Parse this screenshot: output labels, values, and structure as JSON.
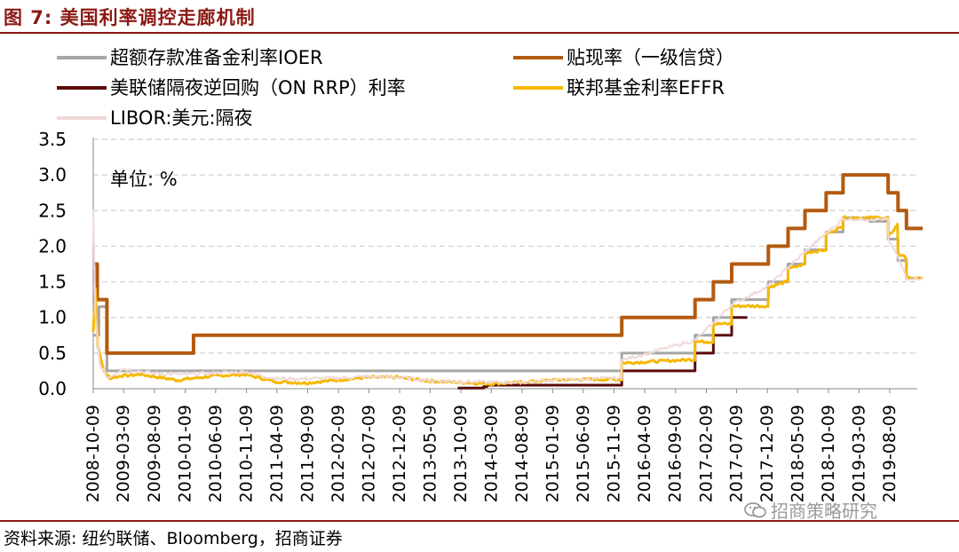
{
  "header": {
    "title": "图 7:  美国利率调控走廊机制"
  },
  "footer": {
    "source": "资料来源:  纽约联储、Bloomberg，招商证券"
  },
  "watermark": {
    "text": "招商策略研究",
    "icon": "wechat-icon"
  },
  "chart_data": {
    "type": "line",
    "unit_label": "单位:  %",
    "ylim": [
      0,
      3.5
    ],
    "yticks": [
      "0.0",
      "0.5",
      "1.0",
      "1.5",
      "2.0",
      "2.5",
      "3.0",
      "3.5"
    ],
    "grid": true,
    "legend_placement": "top",
    "x_tick_labels": [
      "2008-10-09",
      "2009-03-09",
      "2009-08-09",
      "2010-01-09",
      "2010-06-09",
      "2010-11-09",
      "2011-04-09",
      "2011-09-09",
      "2012-02-09",
      "2012-07-09",
      "2012-12-09",
      "2013-05-09",
      "2013-10-09",
      "2014-03-09",
      "2014-08-09",
      "2015-01-09",
      "2015-06-09",
      "2015-11-09",
      "2016-04-09",
      "2016-09-09",
      "2017-02-09",
      "2017-07-09",
      "2017-12-09",
      "2018-05-09",
      "2018-10-09",
      "2019-03-09",
      "2019-08-09"
    ],
    "series": [
      {
        "name": "超额存款准备金利率IOER",
        "color": "#a6a6a6",
        "width": 3,
        "shape": "step",
        "points": [
          [
            "2008-10-09",
            0.75
          ],
          [
            "2008-11-06",
            1.15
          ],
          [
            "2008-12-16",
            0.25
          ],
          [
            "2015-12-17",
            0.5
          ],
          [
            "2016-12-15",
            0.75
          ],
          [
            "2017-03-16",
            1.0
          ],
          [
            "2017-06-15",
            1.25
          ],
          [
            "2017-12-14",
            1.5
          ],
          [
            "2018-03-22",
            1.75
          ],
          [
            "2018-06-14",
            1.95
          ],
          [
            "2018-09-27",
            2.2
          ],
          [
            "2018-12-20",
            2.4
          ],
          [
            "2019-05-02",
            2.35
          ],
          [
            "2019-08-01",
            2.1
          ],
          [
            "2019-09-19",
            1.8
          ],
          [
            "2019-10-31",
            1.55
          ],
          [
            "2020-01-20",
            1.55
          ]
        ]
      },
      {
        "name": "贴现率（一级信贷）",
        "color": "#b35a0f",
        "width": 4,
        "shape": "step",
        "points": [
          [
            "2008-10-09",
            1.75
          ],
          [
            "2008-10-29",
            1.25
          ],
          [
            "2008-12-16",
            0.5
          ],
          [
            "2010-02-19",
            0.75
          ],
          [
            "2015-12-17",
            1.0
          ],
          [
            "2016-12-15",
            1.25
          ],
          [
            "2017-03-16",
            1.5
          ],
          [
            "2017-06-15",
            1.75
          ],
          [
            "2017-12-14",
            2.0
          ],
          [
            "2018-03-22",
            2.25
          ],
          [
            "2018-06-14",
            2.5
          ],
          [
            "2018-09-27",
            2.75
          ],
          [
            "2018-12-20",
            3.0
          ],
          [
            "2019-08-01",
            2.75
          ],
          [
            "2019-09-19",
            2.5
          ],
          [
            "2019-10-31",
            2.25
          ],
          [
            "2020-01-20",
            2.25
          ]
        ]
      },
      {
        "name": "美联储隔夜逆回购（ON RRP）利率",
        "color": "#5a0a0a",
        "width": 3,
        "shape": "step",
        "points": [
          [
            "2013-09-23",
            0.01
          ],
          [
            "2014-01-30",
            0.03
          ],
          [
            "2014-02-15",
            0.05
          ],
          [
            "2015-12-17",
            0.25
          ],
          [
            "2016-12-15",
            0.5
          ],
          [
            "2017-03-16",
            0.75
          ],
          [
            "2017-06-15",
            1.0
          ],
          [
            "2017-09-01",
            1.0
          ]
        ]
      },
      {
        "name": "联邦基金利率EFFR",
        "color": "#f5b800",
        "width": 3,
        "shape": "noisy",
        "points": [
          [
            "2008-10-09",
            0.8
          ],
          [
            "2008-10-20",
            1.4
          ],
          [
            "2008-11-01",
            0.6
          ],
          [
            "2008-12-01",
            0.25
          ],
          [
            "2009-01-01",
            0.15
          ],
          [
            "2009-03-01",
            0.18
          ],
          [
            "2009-06-01",
            0.2
          ],
          [
            "2009-12-01",
            0.12
          ],
          [
            "2010-06-01",
            0.18
          ],
          [
            "2010-11-01",
            0.2
          ],
          [
            "2011-04-01",
            0.1
          ],
          [
            "2011-09-01",
            0.08
          ],
          [
            "2012-02-01",
            0.12
          ],
          [
            "2012-07-01",
            0.16
          ],
          [
            "2012-12-01",
            0.16
          ],
          [
            "2013-05-01",
            0.11
          ],
          [
            "2013-10-01",
            0.09
          ],
          [
            "2014-03-01",
            0.07
          ],
          [
            "2014-08-01",
            0.09
          ],
          [
            "2015-01-01",
            0.12
          ],
          [
            "2015-06-01",
            0.13
          ],
          [
            "2015-12-16",
            0.13
          ],
          [
            "2015-12-17",
            0.36
          ],
          [
            "2016-12-14",
            0.41
          ],
          [
            "2016-12-15",
            0.66
          ],
          [
            "2017-03-15",
            0.66
          ],
          [
            "2017-03-16",
            0.91
          ],
          [
            "2017-06-14",
            0.91
          ],
          [
            "2017-06-15",
            1.16
          ],
          [
            "2017-12-13",
            1.16
          ],
          [
            "2017-12-14",
            1.42
          ],
          [
            "2018-03-21",
            1.51
          ],
          [
            "2018-03-22",
            1.68
          ],
          [
            "2018-06-13",
            1.75
          ],
          [
            "2018-06-14",
            1.91
          ],
          [
            "2018-09-26",
            1.95
          ],
          [
            "2018-09-27",
            2.18
          ],
          [
            "2018-12-19",
            2.27
          ],
          [
            "2018-12-20",
            2.4
          ],
          [
            "2019-07-31",
            2.4
          ],
          [
            "2019-08-01",
            2.13
          ],
          [
            "2019-09-17",
            2.3
          ],
          [
            "2019-09-19",
            1.9
          ],
          [
            "2019-10-30",
            1.83
          ],
          [
            "2019-10-31",
            1.55
          ],
          [
            "2020-01-20",
            1.55
          ]
        ]
      },
      {
        "name": "LIBOR:美元:隔夜",
        "color": "#f0d8d8",
        "width": 2,
        "shape": "noisy",
        "points": [
          [
            "2008-10-09",
            2.5
          ],
          [
            "2008-10-20",
            1.0
          ],
          [
            "2008-11-10",
            0.35
          ],
          [
            "2008-12-20",
            0.15
          ],
          [
            "2009-03-01",
            0.28
          ],
          [
            "2009-08-01",
            0.22
          ],
          [
            "2010-01-01",
            0.2
          ],
          [
            "2010-06-01",
            0.22
          ],
          [
            "2010-11-01",
            0.24
          ],
          [
            "2011-04-01",
            0.14
          ],
          [
            "2011-09-01",
            0.14
          ],
          [
            "2012-02-01",
            0.15
          ],
          [
            "2012-07-01",
            0.17
          ],
          [
            "2012-12-01",
            0.16
          ],
          [
            "2013-05-01",
            0.12
          ],
          [
            "2013-10-01",
            0.1
          ],
          [
            "2014-03-01",
            0.09
          ],
          [
            "2014-08-01",
            0.09
          ],
          [
            "2015-01-01",
            0.12
          ],
          [
            "2015-06-01",
            0.13
          ],
          [
            "2015-12-16",
            0.15
          ],
          [
            "2015-12-17",
            0.4
          ],
          [
            "2016-12-15",
            0.68
          ],
          [
            "2017-03-16",
            0.92
          ],
          [
            "2017-06-15",
            1.18
          ],
          [
            "2017-12-14",
            1.44
          ],
          [
            "2018-03-22",
            1.7
          ],
          [
            "2018-06-14",
            1.92
          ],
          [
            "2018-09-27",
            2.18
          ],
          [
            "2018-12-20",
            2.38
          ],
          [
            "2019-07-31",
            2.38
          ],
          [
            "2019-08-01",
            2.1
          ],
          [
            "2019-09-19",
            1.85
          ],
          [
            "2019-10-31",
            1.55
          ],
          [
            "2020-01-20",
            1.55
          ]
        ]
      }
    ]
  }
}
